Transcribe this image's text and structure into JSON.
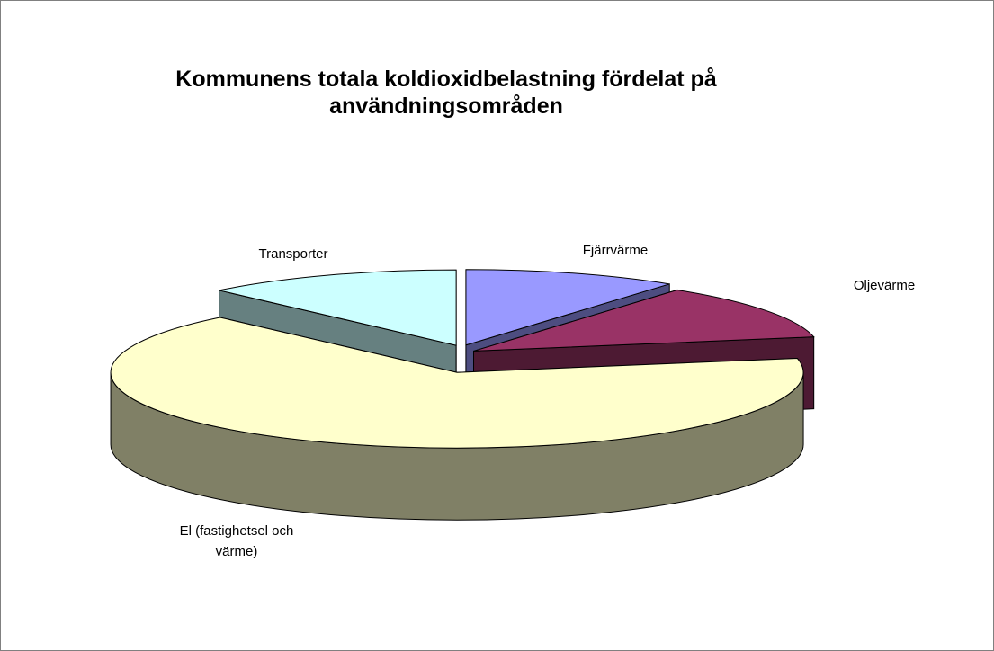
{
  "chart_data": {
    "type": "pie3d",
    "title": "Kommunens totala koldioxidbelastning fördelat på användningsområden",
    "categories": [
      "Fjärrvärme",
      "Oljevärme",
      "El (fastighetsel och värme)",
      "Transporter"
    ],
    "values": [
      10,
      12,
      66,
      12
    ],
    "colors": [
      "#9999ff",
      "#993366",
      "#ffffcc",
      "#ccffff"
    ]
  }
}
